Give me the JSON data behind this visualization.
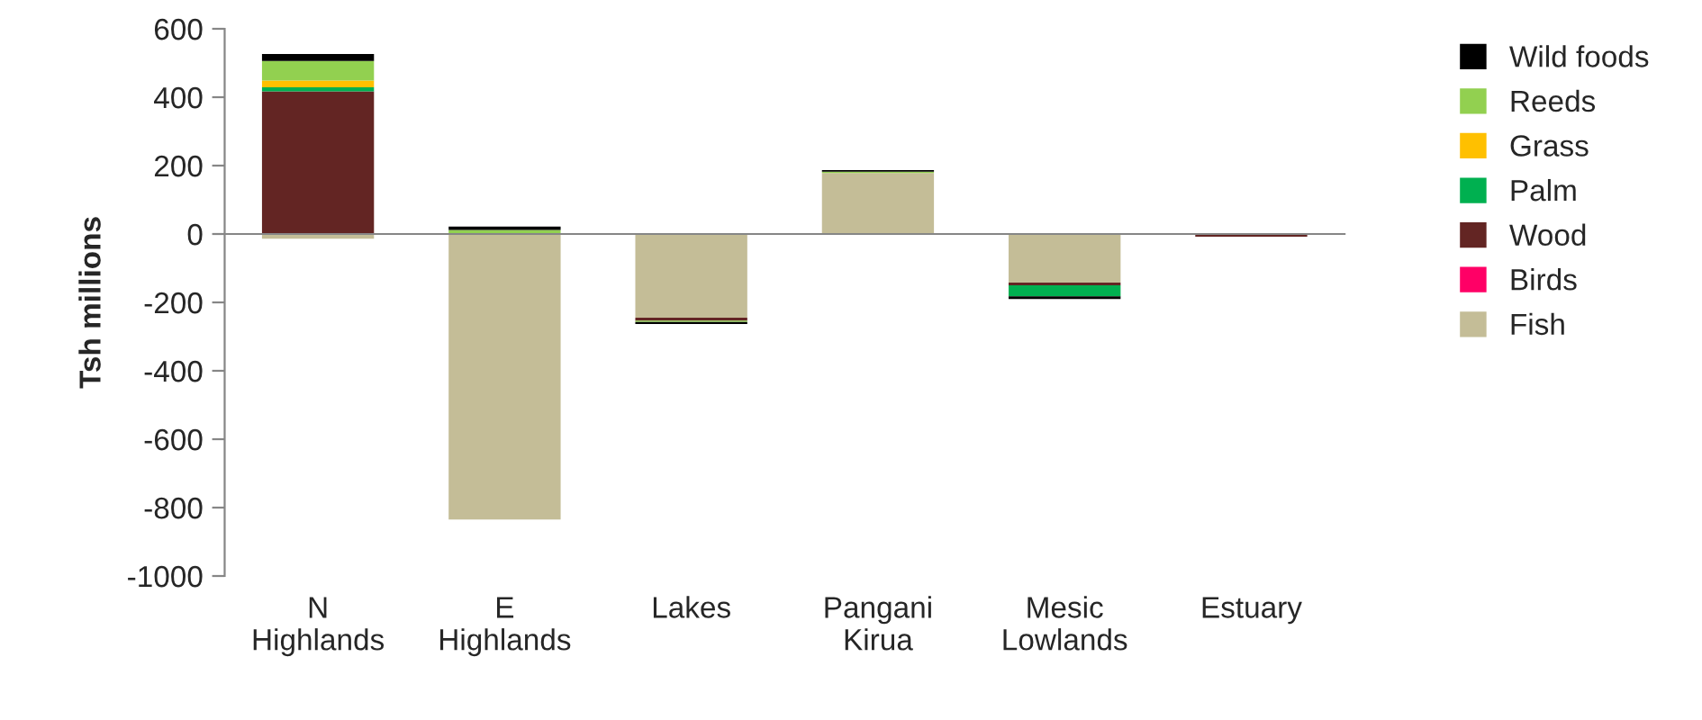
{
  "chart_data": {
    "type": "bar",
    "stacked": true,
    "ylabel": "Tsh millions",
    "categories": [
      "N\nHighlands",
      "E\nHighlands",
      "Lakes",
      "Pangani\nKirua",
      "Mesic\nLowlands",
      "Estuary"
    ],
    "series": [
      {
        "name": "Fish",
        "color": "#c4bd97",
        "values": [
          -14,
          -835,
          -245,
          178,
          -142,
          0
        ]
      },
      {
        "name": "Birds",
        "color": "#ff0066",
        "values": [
          0,
          0,
          0,
          0,
          0,
          0
        ]
      },
      {
        "name": "Wood",
        "color": "#632523",
        "values": [
          417,
          0,
          -8,
          0,
          -8,
          -8
        ]
      },
      {
        "name": "Palm",
        "color": "#00b050",
        "values": [
          12,
          0,
          0,
          0,
          -32,
          0
        ]
      },
      {
        "name": "Grass",
        "color": "#ffc000",
        "values": [
          20,
          0,
          0,
          0,
          0,
          0
        ]
      },
      {
        "name": "Reeds",
        "color": "#92d050",
        "values": [
          57,
          12,
          -4,
          4,
          0,
          0
        ]
      },
      {
        "name": "Wild foods",
        "color": "#000000",
        "values": [
          20,
          10,
          -6,
          5,
          -8,
          0
        ]
      }
    ],
    "ylim": [
      -1000,
      600
    ],
    "yticks": [
      -1000,
      -800,
      -600,
      -400,
      -200,
      0,
      200,
      400,
      600
    ],
    "legend": "right"
  }
}
